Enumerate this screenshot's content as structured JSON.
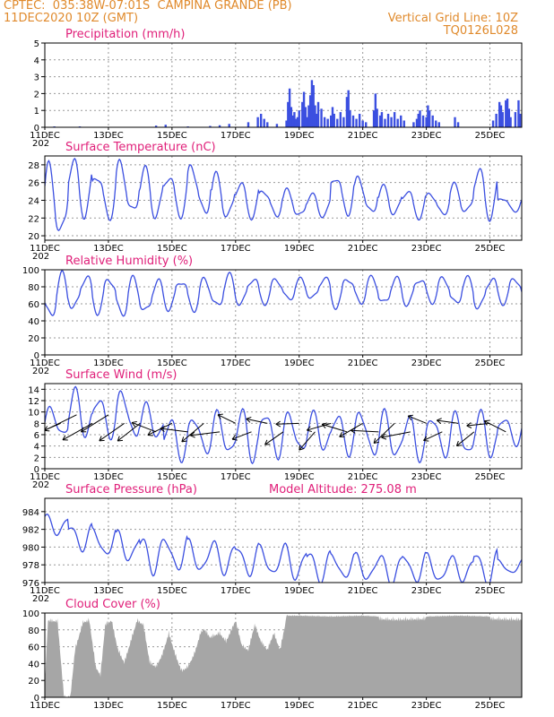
{
  "header": {
    "line1_left": "CPTEC:  035:38W-07:01S  CAMPINA GRANDE (PB)",
    "line2_left": "11DEC2020 10Z (GMT)",
    "line2_right": "Vertical Grid Line: 10Z",
    "line3_right": "TQ0126L028"
  },
  "colors": {
    "line": "#3b4fe0",
    "bar": "#3b4fe0",
    "cloud": "#a6a6a6",
    "title": "#e0207a",
    "header": "#e08a2c",
    "grid": "#999999"
  },
  "x_axis": {
    "start": "11DEC2020 10Z",
    "end": "26DEC2020 10Z",
    "tick_labels": [
      "11DEC",
      "13DEC",
      "15DEC",
      "17DEC",
      "19DEC",
      "21DEC",
      "23DEC",
      "25DEC"
    ],
    "year_fragment": "202"
  },
  "panels": [
    {
      "id": "precip",
      "title": "Precipitation  (mm/h)",
      "ylim": [
        0,
        5
      ],
      "yticks": [
        0,
        1,
        2,
        3,
        4,
        5
      ]
    },
    {
      "id": "temp",
      "title": "Surface Temperature (nC)",
      "ylim": [
        19.5,
        29
      ],
      "yticks": [
        20,
        22,
        24,
        26,
        28
      ]
    },
    {
      "id": "rh",
      "title": "Relative Humidity (%)",
      "ylim": [
        0,
        100
      ],
      "yticks": [
        0,
        20,
        40,
        60,
        80,
        100
      ]
    },
    {
      "id": "wind",
      "title": "Surface Wind (m/s)",
      "ylim": [
        0,
        15
      ],
      "yticks": [
        0,
        2,
        4,
        6,
        8,
        10,
        12,
        14
      ]
    },
    {
      "id": "pres",
      "title": "Surface Pressure (hPa)",
      "extra": "Model Altitude: 275.08 m",
      "ylim": [
        976,
        985.5
      ],
      "yticks": [
        976,
        978,
        980,
        982,
        984
      ]
    },
    {
      "id": "cloud",
      "title": "Cloud Cover (%)",
      "ylim": [
        0,
        100
      ],
      "yticks": [
        0,
        20,
        40,
        60,
        80,
        100
      ]
    }
  ],
  "chart_data": [
    {
      "type": "bar",
      "title": "Precipitation  (mm/h)",
      "x_unit": "days since 11DEC2020 10Z",
      "series": [
        {
          "name": "Precipitation",
          "points": [
            [
              0.3,
              0.05
            ],
            [
              1.1,
              0.05
            ],
            [
              3.5,
              0.1
            ],
            [
              3.8,
              0.15
            ],
            [
              4.5,
              0.05
            ],
            [
              5.2,
              0.08
            ],
            [
              5.5,
              0.12
            ],
            [
              5.8,
              0.2
            ],
            [
              6.4,
              0.3
            ],
            [
              6.7,
              0.6
            ],
            [
              6.8,
              0.8
            ],
            [
              6.9,
              0.5
            ],
            [
              7.0,
              0.3
            ],
            [
              7.3,
              0.2
            ],
            [
              7.6,
              0.4
            ],
            [
              7.65,
              1.5
            ],
            [
              7.7,
              2.3
            ],
            [
              7.75,
              1.2
            ],
            [
              7.8,
              0.7
            ],
            [
              7.85,
              0.9
            ],
            [
              7.9,
              0.5
            ],
            [
              7.95,
              0.6
            ],
            [
              8.0,
              1.0
            ],
            [
              8.1,
              1.5
            ],
            [
              8.15,
              2.1
            ],
            [
              8.2,
              1.2
            ],
            [
              8.25,
              0.6
            ],
            [
              8.3,
              1.3
            ],
            [
              8.35,
              1.9
            ],
            [
              8.4,
              2.8
            ],
            [
              8.45,
              2.5
            ],
            [
              8.5,
              1.3
            ],
            [
              8.55,
              0.8
            ],
            [
              8.6,
              1.5
            ],
            [
              8.7,
              1.1
            ],
            [
              8.8,
              0.6
            ],
            [
              8.9,
              0.5
            ],
            [
              9.0,
              0.7
            ],
            [
              9.05,
              1.2
            ],
            [
              9.1,
              0.8
            ],
            [
              9.2,
              0.5
            ],
            [
              9.3,
              0.9
            ],
            [
              9.4,
              0.6
            ],
            [
              9.5,
              1.8
            ],
            [
              9.55,
              2.2
            ],
            [
              9.6,
              1.0
            ],
            [
              9.7,
              0.7
            ],
            [
              9.8,
              0.5
            ],
            [
              9.9,
              0.8
            ],
            [
              10.0,
              0.4
            ],
            [
              10.1,
              0.3
            ],
            [
              10.35,
              1.0
            ],
            [
              10.4,
              2.0
            ],
            [
              10.45,
              1.1
            ],
            [
              10.55,
              0.7
            ],
            [
              10.6,
              0.9
            ],
            [
              10.7,
              0.5
            ],
            [
              10.8,
              0.8
            ],
            [
              10.9,
              0.6
            ],
            [
              11.0,
              0.9
            ],
            [
              11.1,
              0.5
            ],
            [
              11.2,
              0.7
            ],
            [
              11.3,
              0.4
            ],
            [
              11.6,
              0.3
            ],
            [
              11.7,
              0.5
            ],
            [
              11.75,
              0.8
            ],
            [
              11.8,
              1.0
            ],
            [
              11.9,
              0.7
            ],
            [
              12.0,
              0.6
            ],
            [
              12.05,
              1.3
            ],
            [
              12.1,
              1.0
            ],
            [
              12.2,
              0.7
            ],
            [
              12.3,
              0.4
            ],
            [
              12.4,
              0.3
            ],
            [
              12.9,
              0.6
            ],
            [
              13.0,
              0.3
            ],
            [
              14.1,
              0.4
            ],
            [
              14.2,
              0.8
            ],
            [
              14.3,
              1.5
            ],
            [
              14.35,
              1.3
            ],
            [
              14.4,
              0.9
            ],
            [
              14.5,
              1.6
            ],
            [
              14.55,
              1.7
            ],
            [
              14.6,
              1.1
            ],
            [
              14.65,
              0.6
            ],
            [
              14.8,
              0.9
            ],
            [
              14.9,
              1.6
            ],
            [
              14.95,
              0.8
            ]
          ]
        }
      ]
    },
    {
      "type": "line",
      "title": "Surface Temperature (nC)",
      "ylim": [
        19.5,
        29
      ],
      "series": [
        {
          "name": "Surface Temperature",
          "daily_max": [
            27.4,
            28.3,
            27.0,
            28.0,
            27.3,
            26.8,
            27.8,
            26.6,
            25.9,
            25.2,
            25.0,
            24.6,
            26.8,
            26.4,
            25.4,
            25.1,
            24.8,
            25.6,
            27.3,
            24.3
          ],
          "daily_min": [
            20.1,
            22.6,
            22.2,
            22.4,
            22.3,
            22.5,
            22.4,
            22.1,
            22.3,
            22.3,
            22.1,
            22.3,
            22.7,
            22.4,
            22.5,
            22.2,
            22.4,
            22.6,
            22.3,
            22.8
          ]
        }
      ]
    },
    {
      "type": "line",
      "title": "Relative Humidity (%)",
      "ylim": [
        0,
        100
      ],
      "series": [
        {
          "name": "Relative Humidity",
          "daily_max": [
            92,
            92,
            90,
            88,
            86,
            88,
            88,
            92,
            90,
            89,
            88,
            90,
            91,
            90,
            89,
            90,
            90,
            89,
            90,
            90
          ],
          "daily_min": [
            45,
            55,
            52,
            48,
            50,
            55,
            54,
            56,
            60,
            62,
            65,
            66,
            58,
            62,
            60,
            60,
            63,
            60,
            55,
            62
          ]
        }
      ]
    },
    {
      "type": "line",
      "title": "Surface Wind (m/s)",
      "ylim": [
        0,
        15
      ],
      "series": [
        {
          "name": "Wind Speed",
          "daily_max": [
            10.5,
            13.5,
            12.5,
            13.5,
            11.0,
            8.5,
            9.0,
            9.5,
            9.8,
            10.0,
            9.5,
            9.5,
            9.5,
            10.0,
            9.5,
            9.0,
            9.2,
            9.4,
            9.6,
            9.0
          ],
          "daily_min": [
            5.8,
            6.0,
            6.0,
            5.5,
            5.5,
            2.0,
            3.0,
            2.5,
            1.8,
            2.5,
            3.0,
            3.5,
            3.0,
            2.5,
            2.0,
            2.0,
            2.5,
            2.3,
            2.5,
            4.5
          ]
        }
      ],
      "vectors_note": "wind direction arrows every 12 hours"
    },
    {
      "type": "line",
      "title": "Surface Pressure (hPa)",
      "ylim": [
        976,
        985.5
      ],
      "series": [
        {
          "name": "Surface Pressure",
          "daily_max": [
            983.5,
            982.5,
            982.0,
            981.5,
            981.0,
            981.0,
            980.5,
            980.5,
            980.2,
            980.0,
            980.0,
            979.5,
            979.2,
            979.0,
            979.0,
            979.2,
            979.0,
            978.8,
            979.5,
            978.5
          ],
          "daily_min": [
            981.5,
            979.8,
            979.0,
            978.5,
            977.3,
            977.5,
            977.2,
            977.2,
            977.0,
            976.8,
            976.5,
            976.3,
            976.5,
            976.3,
            976.0,
            976.2,
            976.0,
            976.3,
            976.0,
            977.0
          ]
        }
      ]
    },
    {
      "type": "area",
      "title": "Cloud Cover (%)",
      "ylim": [
        0,
        100
      ],
      "series": [
        {
          "name": "Cloud Cover",
          "profile": [
            [
              0,
              20
            ],
            [
              0.1,
              95
            ],
            [
              0.4,
              94
            ],
            [
              0.6,
              5
            ],
            [
              0.8,
              3
            ],
            [
              0.95,
              60
            ],
            [
              1.2,
              93
            ],
            [
              1.4,
              95
            ],
            [
              1.6,
              40
            ],
            [
              1.75,
              30
            ],
            [
              1.9,
              90
            ],
            [
              2.1,
              95
            ],
            [
              2.3,
              60
            ],
            [
              2.5,
              45
            ],
            [
              2.7,
              70
            ],
            [
              2.9,
              95
            ],
            [
              3.1,
              90
            ],
            [
              3.3,
              45
            ],
            [
              3.5,
              40
            ],
            [
              3.7,
              55
            ],
            [
              3.9,
              80
            ],
            [
              4.1,
              55
            ],
            [
              4.3,
              35
            ],
            [
              4.5,
              40
            ],
            [
              4.7,
              55
            ],
            [
              4.9,
              80
            ],
            [
              5.0,
              85
            ],
            [
              5.2,
              75
            ],
            [
              5.5,
              80
            ],
            [
              5.7,
              70
            ],
            [
              6.0,
              95
            ],
            [
              6.2,
              65
            ],
            [
              6.4,
              60
            ],
            [
              6.6,
              90
            ],
            [
              6.8,
              70
            ],
            [
              7.0,
              60
            ],
            [
              7.2,
              80
            ],
            [
              7.4,
              60
            ],
            [
              7.6,
              98
            ],
            [
              8.0,
              98
            ],
            [
              9.0,
              97
            ],
            [
              10.0,
              98
            ],
            [
              11.0,
              96
            ],
            [
              12.0,
              97
            ],
            [
              13.0,
              98
            ],
            [
              14.0,
              97
            ],
            [
              15.0,
              96
            ]
          ]
        }
      ]
    }
  ]
}
